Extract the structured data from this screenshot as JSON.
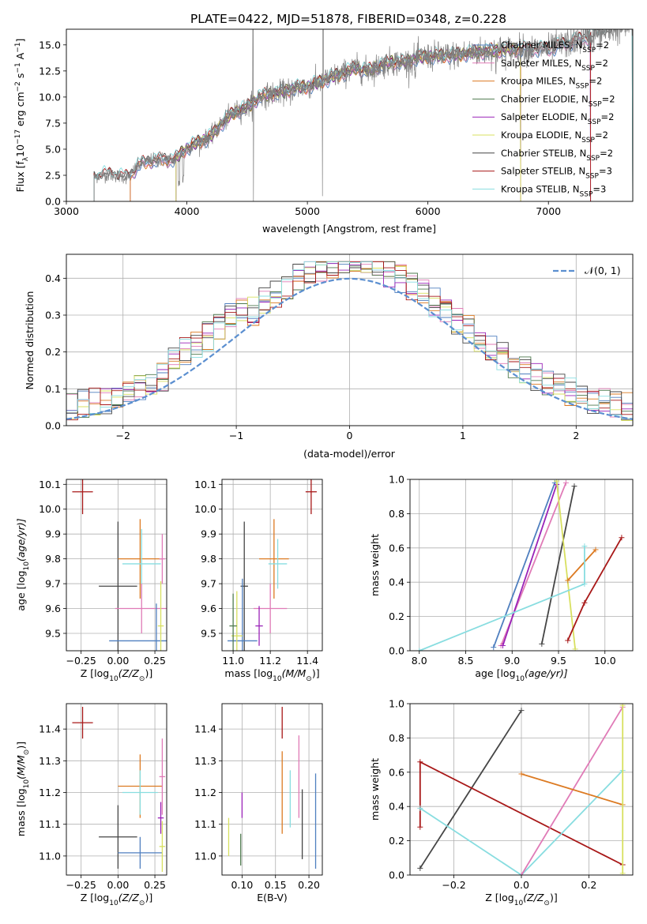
{
  "figure_title": "PLATE=0422, MJD=51878, FIBERID=0348, z=0.228",
  "colors": {
    "chabrier_miles": "#4f7fbf",
    "salpeter_miles": "#e07bb7",
    "kroupa_miles": "#dc7a22",
    "chabrier_elodie": "#4f7a4f",
    "salpeter_elodie": "#9a23b8",
    "kroupa_elodie": "#d8e060",
    "chabrier_stelib": "#454545",
    "salpeter_stelib": "#a81818",
    "kroupa_stelib": "#88dde0",
    "spectrum": "#808080",
    "normal_curve": "#5b8fd0",
    "grid": "#b0b0b0"
  },
  "chart_data": [
    {
      "id": "spectrum",
      "type": "line",
      "xlabel": "wavelength [Angstrom, rest frame]",
      "ylabel_main": "Flux [f",
      "ylabel_units": "10",
      "ylabel_exp1": "−17",
      "ylabel_mid": " erg cm",
      "ylabel_exp2": "−2",
      "ylabel_s": " s",
      "ylabel_exp3": "−1",
      "ylabel_a": " A",
      "ylabel_exp4": "−1",
      "ylabel_close": "]",
      "xlim": [
        3000,
        7700
      ],
      "ylim": [
        0,
        16.5
      ],
      "xticks": [
        "3000",
        "4000",
        "5000",
        "6000",
        "7000"
      ],
      "yticks": [
        "0.0",
        "2.5",
        "5.0",
        "7.5",
        "10.0",
        "12.5",
        "15.0"
      ],
      "continuum": {
        "x": [
          3230,
          3300,
          3400,
          3500,
          3530,
          3600,
          3700,
          3800,
          3900,
          3950,
          4000,
          4100,
          4200,
          4300,
          4400,
          4500,
          4600,
          4700,
          4800,
          4900,
          5000,
          5100,
          5200,
          5300,
          5400,
          5500,
          5600,
          5700,
          5800,
          5900,
          6000,
          6200,
          6400,
          6600,
          6800,
          7000,
          7200,
          7400,
          7700
        ],
        "y": [
          2.3,
          2.6,
          2.5,
          2.3,
          2.5,
          3.5,
          3.9,
          4.0,
          4.0,
          4.6,
          5.1,
          5.7,
          6.2,
          7.6,
          8.6,
          9.0,
          10.0,
          10.3,
          10.5,
          10.9,
          11.0,
          11.4,
          11.9,
          12.3,
          12.8,
          12.5,
          13.0,
          13.4,
          13.3,
          13.7,
          13.9,
          14.0,
          14.3,
          14.5,
          14.6,
          14.6,
          15.3,
          16.0,
          17.0
        ]
      },
      "legend": [
        {
          "name": "Chabrier MILES, N",
          "sub": "SSP",
          "count": "=2",
          "color_key": "chabrier_miles"
        },
        {
          "name": "Salpeter MILES, N",
          "sub": "SSP",
          "count": "=2",
          "color_key": "salpeter_miles"
        },
        {
          "name": "Kroupa MILES, N",
          "sub": "SSP",
          "count": "=2",
          "color_key": "kroupa_miles"
        },
        {
          "name": "Chabrier ELODIE, N",
          "sub": "SSP",
          "count": "=2",
          "color_key": "chabrier_elodie"
        },
        {
          "name": "Salpeter ELODIE, N",
          "sub": "SSP",
          "count": "=2",
          "color_key": "salpeter_elodie"
        },
        {
          "name": "Kroupa ELODIE, N",
          "sub": "SSP",
          "count": "=2",
          "color_key": "kroupa_elodie"
        },
        {
          "name": "Chabrier STELIB, N",
          "sub": "SSP",
          "count": "=2",
          "color_key": "chabrier_stelib"
        },
        {
          "name": "Salpeter STELIB, N",
          "sub": "SSP",
          "count": "=3",
          "color_key": "salpeter_stelib"
        },
        {
          "name": "Kroupa STELIB, N",
          "sub": "SSP",
          "count": "=3",
          "color_key": "kroupa_stelib"
        }
      ]
    },
    {
      "id": "residuals",
      "type": "area",
      "xlabel": "(data-model)/error",
      "ylabel": "Normed distribution",
      "xlim": [
        -2.5,
        2.5
      ],
      "ylim": [
        0,
        0.465
      ],
      "xticks": [
        "−2",
        "−1",
        "0",
        "1",
        "2"
      ],
      "yticks": [
        "0.0",
        "0.1",
        "0.2",
        "0.3",
        "0.4"
      ],
      "grid": true,
      "legend_label": "𝒩(0, 1)",
      "legend_position": "top-right",
      "bin_width": 0.1,
      "bin_start": -2.5
    },
    {
      "id": "age_vs_Z",
      "type": "scatter",
      "xlabel": "Z [log",
      "xlabel_sub": "10",
      "xlabel_rest": "(Z/Z",
      "xlabel_sun": "⊙",
      "xlabel_close": ")]",
      "ylabel": "age  [log",
      "ylabel_sub": "10",
      "ylabel_rest": "(age/yr)]",
      "xlim": [
        -0.35,
        0.33
      ],
      "ylim": [
        9.43,
        10.12
      ],
      "xticks": [
        "−0.25",
        "0.00",
        "0.25"
      ],
      "yticks": [
        "9.5",
        "9.6",
        "9.7",
        "9.8",
        "9.9",
        "10.0",
        "10.1"
      ],
      "points": [
        {
          "x": -0.24,
          "y": 10.07,
          "xerr": 0.07,
          "yerr": 0.09,
          "color_key": "salpeter_stelib"
        },
        {
          "x": 0.0,
          "y": 9.69,
          "xerr": 0.13,
          "yerr": 0.26,
          "color_key": "chabrier_stelib"
        },
        {
          "x": 0.15,
          "y": 9.8,
          "xerr": 0.15,
          "yerr": 0.16,
          "color_key": "kroupa_miles"
        },
        {
          "x": 0.16,
          "y": 9.78,
          "xerr": 0.13,
          "yerr": 0.14,
          "color_key": "kroupa_stelib"
        },
        {
          "x": 0.16,
          "y": 9.6,
          "xerr": 0.18,
          "yerr": 0.1,
          "color_key": "salpeter_miles"
        },
        {
          "x": 0.26,
          "y": 9.47,
          "xerr": 0.32,
          "yerr": 0.15,
          "color_key": "chabrier_miles"
        },
        {
          "x": 0.3,
          "y": 9.8,
          "xerr": 0.02,
          "yerr": 0.1,
          "color_key": "salpeter_miles"
        },
        {
          "x": 0.29,
          "y": 9.53,
          "xerr": 0.02,
          "yerr": 0.18,
          "color_key": "kroupa_elodie"
        }
      ]
    },
    {
      "id": "age_vs_mass",
      "type": "scatter",
      "xlabel": "mass [log",
      "xlabel_sub": "10",
      "xlabel_rest": "(M/M",
      "xlabel_sun": "⊙",
      "xlabel_close": ")]",
      "xlim": [
        10.94,
        11.48
      ],
      "ylim": [
        9.43,
        10.12
      ],
      "xticks": [
        "11.0",
        "11.2",
        "11.4"
      ],
      "yticks": [
        "9.5",
        "9.6",
        "9.7",
        "9.8",
        "9.9",
        "10.0",
        "10.1"
      ],
      "points": [
        {
          "x": 11.42,
          "y": 10.07,
          "xerr": 0.03,
          "yerr": 0.09,
          "color_key": "salpeter_stelib"
        },
        {
          "x": 11.06,
          "y": 9.69,
          "xerr": 0.02,
          "yerr": 0.26,
          "color_key": "chabrier_stelib"
        },
        {
          "x": 11.22,
          "y": 9.8,
          "xerr": 0.08,
          "yerr": 0.16,
          "color_key": "kroupa_miles"
        },
        {
          "x": 11.24,
          "y": 9.78,
          "xerr": 0.05,
          "yerr": 0.1,
          "color_key": "kroupa_stelib"
        },
        {
          "x": 11.2,
          "y": 9.6,
          "xerr": 0.09,
          "yerr": 0.1,
          "color_key": "salpeter_miles"
        },
        {
          "x": 11.05,
          "y": 9.47,
          "xerr": 0.08,
          "yerr": 0.25,
          "color_key": "chabrier_miles"
        },
        {
          "x": 11.14,
          "y": 9.53,
          "xerr": 0.02,
          "yerr": 0.08,
          "color_key": "salpeter_elodie"
        },
        {
          "x": 11.02,
          "y": 9.49,
          "xerr": 0.03,
          "yerr": 0.18,
          "color_key": "kroupa_elodie"
        },
        {
          "x": 11.0,
          "y": 9.53,
          "xerr": 0.02,
          "yerr": 0.13,
          "color_key": "chabrier_elodie"
        }
      ]
    },
    {
      "id": "weight_vs_age",
      "type": "line",
      "xlabel": "age  [log",
      "xlabel_sub": "10",
      "xlabel_rest": "(age/yr)]",
      "ylabel": "mass weight",
      "xlim": [
        7.9,
        10.3
      ],
      "ylim": [
        0,
        1
      ],
      "xticks": [
        "8.0",
        "8.5",
        "9.0",
        "9.5",
        "10.0"
      ],
      "yticks": [
        "0.0",
        "0.2",
        "0.4",
        "0.6",
        "0.8",
        "1.0"
      ],
      "series": [
        {
          "color_key": "chabrier_miles",
          "x": [
            8.8,
            9.46
          ],
          "y": [
            0.02,
            0.98
          ]
        },
        {
          "color_key": "salpeter_miles",
          "x": [
            8.88,
            9.58
          ],
          "y": [
            0.03,
            0.98
          ]
        },
        {
          "color_key": "salpeter_elodie",
          "x": [
            8.9,
            9.48
          ],
          "y": [
            0.03,
            0.97
          ]
        },
        {
          "color_key": "chabrier_stelib",
          "x": [
            9.32,
            9.67
          ],
          "y": [
            0.04,
            0.96
          ]
        },
        {
          "color_key": "kroupa_elodie",
          "x": [
            9.68,
            9.48
          ],
          "y": [
            0.01,
            0.99
          ]
        },
        {
          "color_key": "kroupa_miles",
          "x": [
            9.6,
            9.9
          ],
          "y": [
            0.41,
            0.59
          ]
        },
        {
          "color_key": "kroupa_stelib",
          "x": [
            8.0,
            9.78,
            9.78
          ],
          "y": [
            0.0,
            0.39,
            0.61
          ]
        },
        {
          "color_key": "salpeter_stelib",
          "x": [
            9.6,
            9.78,
            10.18
          ],
          "y": [
            0.06,
            0.28,
            0.66
          ]
        }
      ]
    },
    {
      "id": "mass_vs_Z",
      "type": "scatter",
      "xlabel": "Z [log",
      "xlabel_sub": "10",
      "xlabel_rest": "(Z/Z",
      "xlabel_sun": "⊙",
      "xlabel_close": ")]",
      "ylabel": "mass [log",
      "ylabel_sub": "10",
      "ylabel_rest": "(M/M",
      "ylabel_sun": "⊙",
      "ylabel_close": ")]",
      "xlim": [
        -0.35,
        0.33
      ],
      "ylim": [
        10.94,
        11.48
      ],
      "xticks": [
        "−0.25",
        "0.00",
        "0.25"
      ],
      "yticks": [
        "11.0",
        "11.1",
        "11.2",
        "11.3",
        "11.4"
      ],
      "points": [
        {
          "x": -0.24,
          "y": 11.42,
          "xerr": 0.07,
          "yerr": 0.05,
          "color_key": "salpeter_stelib"
        },
        {
          "x": 0.0,
          "y": 11.06,
          "xerr": 0.13,
          "yerr": 0.1,
          "color_key": "chabrier_stelib"
        },
        {
          "x": 0.15,
          "y": 11.22,
          "xerr": 0.15,
          "yerr": 0.1,
          "color_key": "kroupa_miles"
        },
        {
          "x": 0.15,
          "y": 11.2,
          "xerr": 0.12,
          "yerr": 0.07,
          "color_key": "kroupa_stelib"
        },
        {
          "x": 0.15,
          "y": 11.01,
          "xerr": 0.15,
          "yerr": 0.05,
          "color_key": "chabrier_miles"
        },
        {
          "x": 0.3,
          "y": 11.25,
          "xerr": 0.02,
          "yerr": 0.12,
          "color_key": "salpeter_miles"
        },
        {
          "x": 0.29,
          "y": 11.12,
          "xerr": 0.02,
          "yerr": 0.05,
          "color_key": "salpeter_elodie"
        },
        {
          "x": 0.3,
          "y": 11.03,
          "xerr": 0.02,
          "yerr": 0.08,
          "color_key": "kroupa_elodie"
        }
      ]
    },
    {
      "id": "mass_vs_ebv",
      "type": "scatter",
      "xlabel": "E(B-V)",
      "xlim": [
        0.07,
        0.22
      ],
      "ylim": [
        10.94,
        11.48
      ],
      "xticks": [
        "0.10",
        "0.15",
        "0.20"
      ],
      "yticks": [
        "11.0",
        "11.1",
        "11.2",
        "11.3",
        "11.4"
      ],
      "points": [
        {
          "x": 0.16,
          "y": 11.42,
          "yerr": 0.05,
          "color_key": "salpeter_stelib"
        },
        {
          "x": 0.16,
          "y": 11.2,
          "yerr": 0.13,
          "color_key": "kroupa_miles"
        },
        {
          "x": 0.185,
          "y": 11.25,
          "yerr": 0.13,
          "color_key": "salpeter_miles"
        },
        {
          "x": 0.172,
          "y": 11.18,
          "yerr": 0.09,
          "color_key": "kroupa_stelib"
        },
        {
          "x": 0.19,
          "y": 11.1,
          "yerr": 0.11,
          "color_key": "chabrier_stelib"
        },
        {
          "x": 0.21,
          "y": 11.11,
          "yerr": 0.15,
          "color_key": "chabrier_miles"
        },
        {
          "x": 0.1,
          "y": 11.16,
          "yerr": 0.04,
          "color_key": "salpeter_elodie"
        },
        {
          "x": 0.098,
          "y": 11.02,
          "yerr": 0.05,
          "color_key": "chabrier_elodie"
        },
        {
          "x": 0.08,
          "y": 11.06,
          "yerr": 0.06,
          "color_key": "kroupa_elodie"
        }
      ]
    },
    {
      "id": "weight_vs_Z",
      "type": "line",
      "xlabel": "Z [log",
      "xlabel_sub": "10",
      "xlabel_rest": "(Z/Z",
      "xlabel_sun": "⊙",
      "xlabel_close": ")]",
      "ylabel": "mass weight",
      "xlim": [
        -0.33,
        0.33
      ],
      "ylim": [
        0,
        1
      ],
      "xticks": [
        "−0.2",
        "0.0",
        "0.2"
      ],
      "yticks": [
        "0.0",
        "0.2",
        "0.4",
        "0.6",
        "0.8",
        "1.0"
      ],
      "series": [
        {
          "color_key": "chabrier_stelib",
          "x": [
            -0.3,
            0.0
          ],
          "y": [
            0.04,
            0.96
          ]
        },
        {
          "color_key": "salpeter_stelib",
          "x": [
            -0.3,
            -0.3,
            0.3
          ],
          "y": [
            0.28,
            0.66,
            0.06
          ]
        },
        {
          "color_key": "kroupa_stelib",
          "x": [
            -0.3,
            0.0,
            0.3
          ],
          "y": [
            0.39,
            0.0,
            0.61
          ]
        },
        {
          "color_key": "salpeter_miles",
          "x": [
            0.0,
            0.3
          ],
          "y": [
            0.0,
            0.98
          ]
        },
        {
          "color_key": "kroupa_miles",
          "x": [
            0.0,
            0.3
          ],
          "y": [
            0.59,
            0.41
          ]
        },
        {
          "color_key": "kroupa_elodie",
          "x": [
            0.3,
            0.3
          ],
          "y": [
            0.01,
            0.99
          ]
        }
      ]
    }
  ]
}
